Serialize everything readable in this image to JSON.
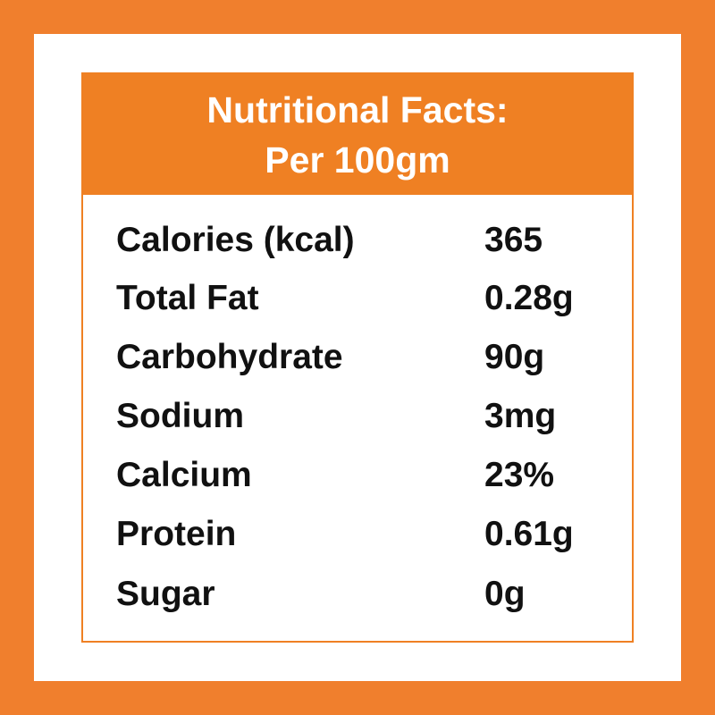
{
  "header": {
    "line1": "Nutritional Facts:",
    "line2": "Per 100gm"
  },
  "rows": [
    {
      "label": "Calories (kcal)",
      "value": "365"
    },
    {
      "label": "Total Fat",
      "value": "0.28g"
    },
    {
      "label": "Carbohydrate",
      "value": "90g"
    },
    {
      "label": "Sodium",
      "value": "3mg"
    },
    {
      "label": "Calcium",
      "value": "23%"
    },
    {
      "label": "Protein",
      "value": "0.61g"
    },
    {
      "label": "Sugar",
      "value": "0g"
    }
  ],
  "colors": {
    "accent": "#EF8023",
    "frame": "#F07F2D",
    "text": "#111111"
  }
}
